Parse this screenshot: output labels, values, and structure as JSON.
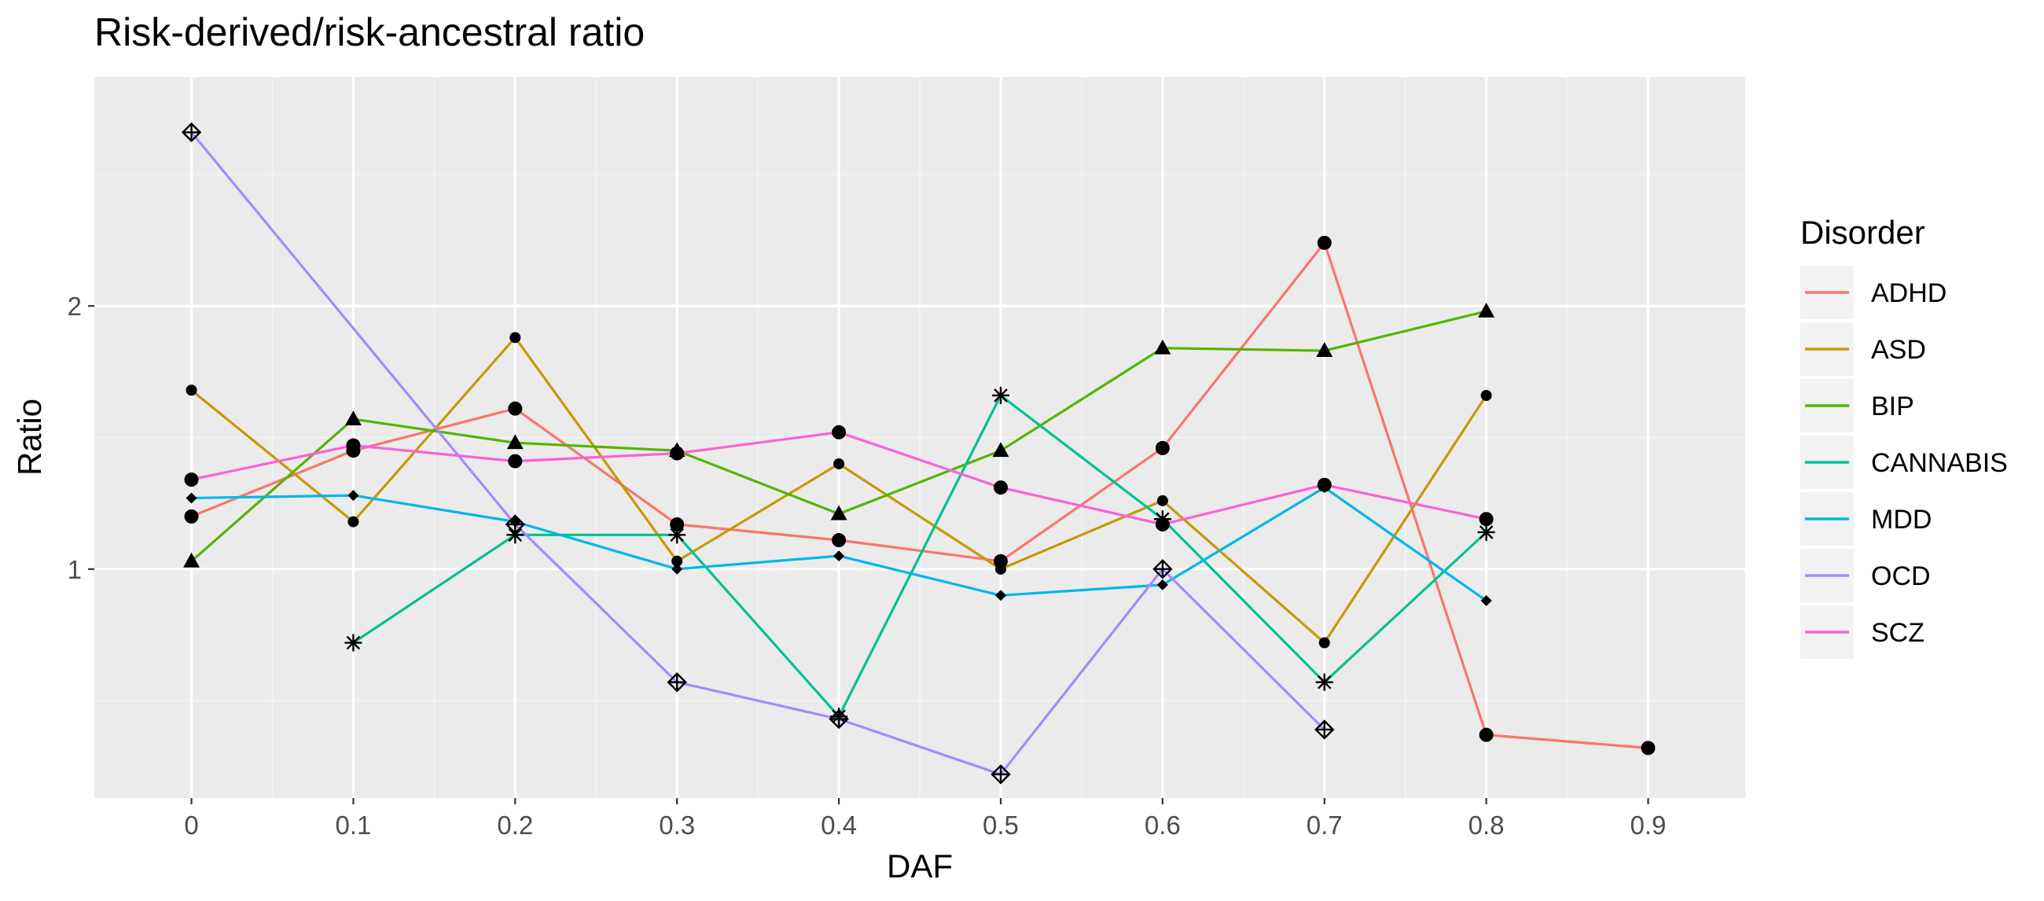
{
  "chart_data": {
    "type": "line",
    "title": "Risk-derived/risk-ancestral ratio",
    "xlabel": "DAF",
    "ylabel": "Ratio",
    "x_ticks": [
      "0",
      "0.1",
      "0.2",
      "0.3",
      "0.4",
      "0.5",
      "0.6",
      "0.7",
      "0.8",
      "0.9"
    ],
    "y_ticks": [
      "1",
      "2"
    ],
    "xlim": [
      -0.06,
      0.96
    ],
    "ylim": [
      0.13,
      2.87
    ],
    "grid": true,
    "legend_title": "Disorder",
    "legend_position": "right",
    "series": [
      {
        "name": "ADHD",
        "color": "#F8766D",
        "marker": "circle",
        "shape": "circle-large",
        "x": [
          0,
          0.1,
          0.2,
          0.3,
          0.4,
          0.5,
          0.6,
          0.7,
          0.8,
          0.9
        ],
        "y": [
          1.2,
          1.45,
          1.61,
          1.17,
          1.11,
          1.03,
          1.46,
          2.24,
          0.37,
          0.32
        ]
      },
      {
        "name": "ASD",
        "color": "#C49A00",
        "marker": "circle-small",
        "shape": "circle-small",
        "x": [
          0,
          0.1,
          0.2,
          0.3,
          0.4,
          0.5,
          0.6,
          0.7,
          0.8
        ],
        "y": [
          1.68,
          1.18,
          1.88,
          1.03,
          1.4,
          1.0,
          1.26,
          0.72,
          1.66
        ]
      },
      {
        "name": "BIP",
        "color": "#53B400",
        "marker": "triangle",
        "shape": "triangle",
        "x": [
          0,
          0.1,
          0.2,
          0.3,
          0.4,
          0.5,
          0.6,
          0.7,
          0.8
        ],
        "y": [
          1.03,
          1.57,
          1.48,
          1.45,
          1.21,
          1.45,
          1.84,
          1.83,
          1.98
        ]
      },
      {
        "name": "CANNABIS",
        "color": "#00C094",
        "marker": "asterisk",
        "shape": "asterisk",
        "x": [
          0.1,
          0.2,
          0.3,
          0.4,
          0.5,
          0.6,
          0.7,
          0.8
        ],
        "y": [
          0.72,
          1.13,
          1.13,
          0.44,
          1.66,
          1.19,
          0.57,
          1.14
        ]
      },
      {
        "name": "MDD",
        "color": "#00B6EB",
        "marker": "diamond",
        "shape": "diamond-small",
        "x": [
          0,
          0.1,
          0.2,
          0.3,
          0.4,
          0.5,
          0.6,
          0.7,
          0.8
        ],
        "y": [
          1.27,
          1.28,
          1.18,
          1.0,
          1.05,
          0.9,
          0.94,
          1.31,
          0.88
        ]
      },
      {
        "name": "OCD",
        "color": "#A58AFF",
        "marker": "diamond-plus",
        "shape": "diamond-plus",
        "x": [
          0,
          0.2,
          0.3,
          0.4,
          0.5,
          0.6,
          0.7
        ],
        "y": [
          2.66,
          1.17,
          0.57,
          0.43,
          0.22,
          1.0,
          0.39
        ]
      },
      {
        "name": "SCZ",
        "color": "#FB61D7",
        "marker": "circle",
        "shape": "circle-large",
        "x": [
          0,
          0.1,
          0.2,
          0.3,
          0.4,
          0.5,
          0.6,
          0.7,
          0.8
        ],
        "y": [
          1.34,
          1.47,
          1.41,
          1.44,
          1.52,
          1.31,
          1.17,
          1.32,
          1.19
        ]
      }
    ]
  }
}
